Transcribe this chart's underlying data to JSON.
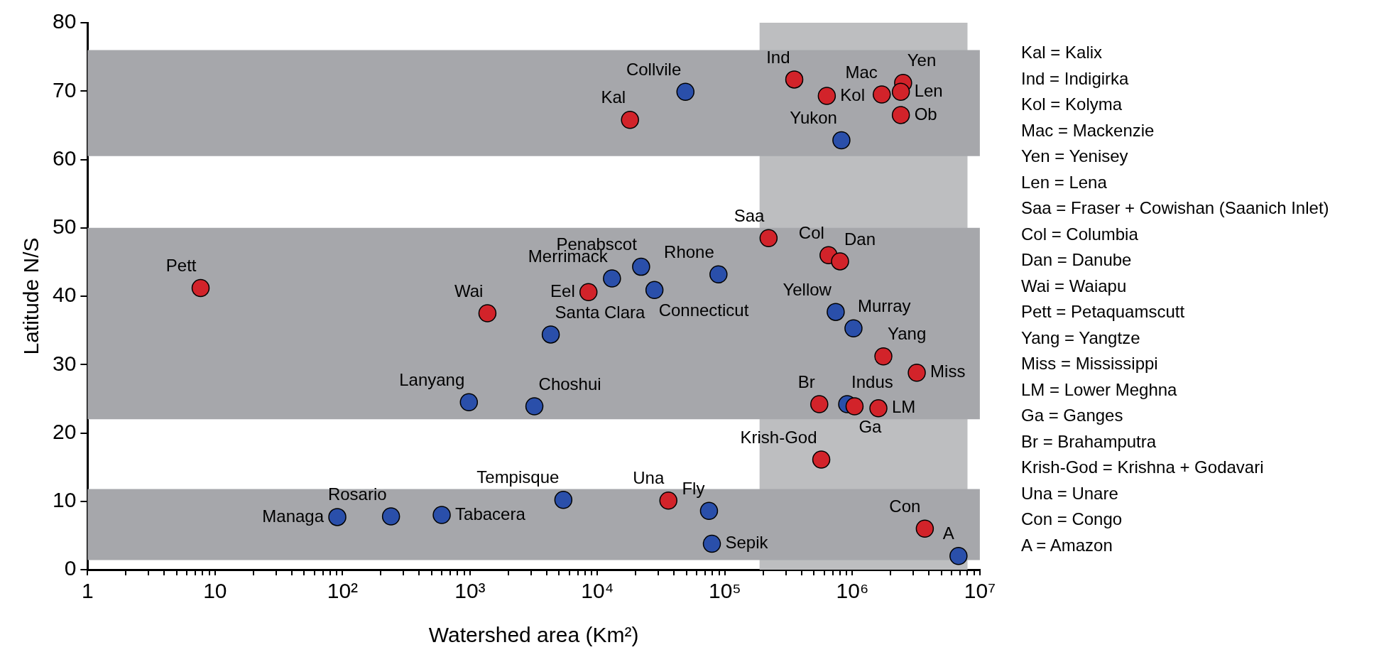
{
  "chart_data": {
    "type": "scatter",
    "xlabel": "Watershed area (Km²)",
    "ylabel": "Latitude N/S",
    "log": "x",
    "grid": false,
    "legend": false,
    "marker": "circle",
    "xlim": [
      1,
      10000000
    ],
    "ylim": [
      0,
      80
    ],
    "xticks": [
      1,
      {
        "value": 2,
        "label": null
      },
      {
        "value": 3,
        "label": null
      },
      {
        "value": 4,
        "label": null
      },
      {
        "value": 5,
        "label": null
      },
      {
        "value": 6,
        "label": null
      },
      {
        "value": 7,
        "label": null
      },
      {
        "value": 8,
        "label": null
      },
      {
        "value": 9,
        "label": null
      },
      10,
      {
        "value": 20,
        "label": null
      },
      {
        "value": 30,
        "label": null
      },
      {
        "value": 40,
        "label": null
      },
      {
        "value": 50,
        "label": null
      },
      {
        "value": 60,
        "label": null
      },
      {
        "value": 70,
        "label": null
      },
      {
        "value": 80,
        "label": null
      },
      {
        "value": 90,
        "label": null
      },
      {
        "value": 100,
        "label": "10²"
      },
      {
        "value": 200,
        "label": null
      },
      {
        "value": 300,
        "label": null
      },
      {
        "value": 400,
        "label": null
      },
      {
        "value": 500,
        "label": null
      },
      {
        "value": 600,
        "label": null
      },
      {
        "value": 700,
        "label": null
      },
      {
        "value": 800,
        "label": null
      },
      {
        "value": 900,
        "label": null
      },
      {
        "value": 1000,
        "label": "10³"
      },
      {
        "value": 2000,
        "label": null
      },
      {
        "value": 3000,
        "label": null
      },
      {
        "value": 4000,
        "label": null
      },
      {
        "value": 5000,
        "label": null
      },
      {
        "value": 6000,
        "label": null
      },
      {
        "value": 7000,
        "label": null
      },
      {
        "value": 8000,
        "label": null
      },
      {
        "value": 9000,
        "label": null
      },
      {
        "value": 10000,
        "label": "10⁴"
      },
      {
        "value": 20000,
        "label": null
      },
      {
        "value": 30000,
        "label": null
      },
      {
        "value": 40000,
        "label": null
      },
      {
        "value": 50000,
        "label": null
      },
      {
        "value": 60000,
        "label": null
      },
      {
        "value": 70000,
        "label": null
      },
      {
        "value": 80000,
        "label": null
      },
      {
        "value": 90000,
        "label": null
      },
      {
        "value": 100000,
        "label": "10⁵"
      },
      {
        "value": 200000,
        "label": null
      },
      {
        "value": 300000,
        "label": null
      },
      {
        "value": 400000,
        "label": null
      },
      {
        "value": 500000,
        "label": null
      },
      {
        "value": 600000,
        "label": null
      },
      {
        "value": 700000,
        "label": null
      },
      {
        "value": 800000,
        "label": null
      },
      {
        "value": 900000,
        "label": null
      },
      {
        "value": 1000000,
        "label": "10⁶"
      },
      {
        "value": 2000000,
        "label": null
      },
      {
        "value": 3000000,
        "label": null
      },
      {
        "value": 4000000,
        "label": null
      },
      {
        "value": 5000000,
        "label": null
      },
      {
        "value": 6000000,
        "label": null
      },
      {
        "value": 7000000,
        "label": null
      },
      {
        "value": 8000000,
        "label": null
      },
      {
        "value": 9000000,
        "label": null
      },
      {
        "value": 10000000,
        "label": "10⁷"
      }
    ],
    "yticks": [
      0,
      10,
      20,
      30,
      40,
      50,
      60,
      70,
      80
    ],
    "bands": [
      {
        "axis": "x",
        "from": 187000,
        "to": 8000000,
        "color": "#bdbec0"
      },
      {
        "axis": "y",
        "from": 60.5,
        "to": 76,
        "color": "#a6a7ab"
      },
      {
        "axis": "y",
        "from": 22,
        "to": 50,
        "color": "#a6a7ab"
      },
      {
        "axis": "y",
        "from": 1.4,
        "to": 11.8,
        "color": "#a6a7ab"
      }
    ],
    "series": [
      {
        "color": "#d2232a",
        "x": [
          18000,
          350000,
          630000,
          1700000,
          2500000,
          2400000,
          2400000,
          220000,
          650000,
          800000,
          8500,
          7.7,
          1370,
          1750000,
          3200000,
          550000,
          1040000,
          1600000,
          570000,
          36000,
          3700000
        ],
        "values": [
          65.8,
          71.7,
          69.3,
          69.5,
          71.2,
          69.9,
          66.5,
          48.5,
          46.0,
          45.1,
          40.6,
          41.2,
          37.5,
          31.2,
          28.8,
          24.2,
          23.9,
          23.6,
          16.1,
          10.1,
          6.0
        ]
      },
      {
        "color": "#2a4faa",
        "x": [
          49000,
          820000,
          13000,
          22000,
          28000,
          89000,
          740000,
          1020000,
          4300,
          980,
          3200,
          910000,
          91,
          240,
          600,
          5400,
          75000,
          79000,
          6800000
        ],
        "values": [
          69.9,
          62.8,
          42.6,
          44.3,
          40.9,
          43.2,
          37.7,
          35.3,
          34.4,
          24.5,
          23.9,
          24.2,
          7.7,
          7.8,
          8.0,
          10.2,
          8.6,
          3.8,
          2.0
        ]
      }
    ],
    "annotations": [
      {
        "text": "Kal",
        "x": 18000,
        "y": 65.8
      },
      {
        "text": "Collvile",
        "x": 49000,
        "y": 69.9
      },
      {
        "text": "Ind",
        "x": 350000,
        "y": 71.7
      },
      {
        "text": "Mac",
        "x": 1700000,
        "y": 69.5
      },
      {
        "text": "Kol",
        "x": 630000,
        "y": 69.3
      },
      {
        "text": "Yen",
        "x": 2500000,
        "y": 71.2
      },
      {
        "text": "Len",
        "x": 2400000,
        "y": 69.9
      },
      {
        "text": "Ob",
        "x": 2400000,
        "y": 66.5
      },
      {
        "text": "Yukon",
        "x": 820000,
        "y": 62.8
      },
      {
        "text": "Saa",
        "x": 220000,
        "y": 48.5
      },
      {
        "text": "Col",
        "x": 650000,
        "y": 46.0
      },
      {
        "text": "Dan",
        "x": 800000,
        "y": 45.1
      },
      {
        "text": "Penabscot",
        "x": 22000,
        "y": 44.3
      },
      {
        "text": "Merrimack",
        "x": 13000,
        "y": 42.6
      },
      {
        "text": "Rhone",
        "x": 89000,
        "y": 43.2
      },
      {
        "text": "Eel",
        "x": 8500,
        "y": 40.6
      },
      {
        "text": "Connecticut",
        "x": 28000,
        "y": 40.9
      },
      {
        "text": "Yellow",
        "x": 740000,
        "y": 37.7
      },
      {
        "text": "Murray",
        "x": 1020000,
        "y": 35.3
      },
      {
        "text": "Santa Clara",
        "x": 4300,
        "y": 34.4
      },
      {
        "text": "Yang",
        "x": 1750000,
        "y": 31.2
      },
      {
        "text": "Miss",
        "x": 3200000,
        "y": 28.8
      },
      {
        "text": "Br",
        "x": 550000,
        "y": 24.2
      },
      {
        "text": "Indus",
        "x": 910000,
        "y": 24.2
      },
      {
        "text": "LM",
        "x": 1600000,
        "y": 23.6
      },
      {
        "text": "Ga",
        "x": 1040000,
        "y": 23.9
      },
      {
        "text": "Choshui",
        "x": 3200,
        "y": 23.9
      },
      {
        "text": "Krish-God",
        "x": 570000,
        "y": 16.1
      },
      {
        "text": "Tempisque",
        "x": 5400,
        "y": 10.2
      },
      {
        "text": "Una",
        "x": 36000,
        "y": 10.1
      },
      {
        "text": "Fly",
        "x": 75000,
        "y": 8.6
      },
      {
        "text": "Sepik",
        "x": 79000,
        "y": 3.8
      },
      {
        "text": "Con",
        "x": 3700000,
        "y": 6.0
      },
      {
        "text": "A",
        "x": 6800000,
        "y": 2.0
      },
      {
        "text": "Pett",
        "x": 7.7,
        "y": 41.2
      },
      {
        "text": "Wai",
        "x": 1370,
        "y": 37.5
      },
      {
        "text": "Lanyang",
        "x": 980,
        "y": 24.5
      },
      {
        "text": "Rosario",
        "x": 240,
        "y": 7.8
      },
      {
        "text": "Managa",
        "x": 91,
        "y": 7.7
      },
      {
        "text": "Tabacera",
        "x": 600,
        "y": 8.0
      },
      "Kal = Kalix",
      "Ind = Indigirka",
      "Kol = Kolyma",
      "Mac = Mackenzie",
      "Yen = Yenisey",
      "Len = Lena",
      "Saa = Fraser + Cowishan (Saanich Inlet)",
      "Col = Columbia",
      "Dan = Danube",
      "Wai = Waiapu",
      "Pett = Petaquamscutt",
      "Yang = Yangtze",
      "Miss = Mississippi",
      "LM = Lower Meghna",
      "Ga = Ganges",
      "Br = Brahamputra",
      "Krish-God = Krishna + Godavari",
      "Una = Unare",
      "Con = Congo",
      "A = Amazon"
    ]
  }
}
